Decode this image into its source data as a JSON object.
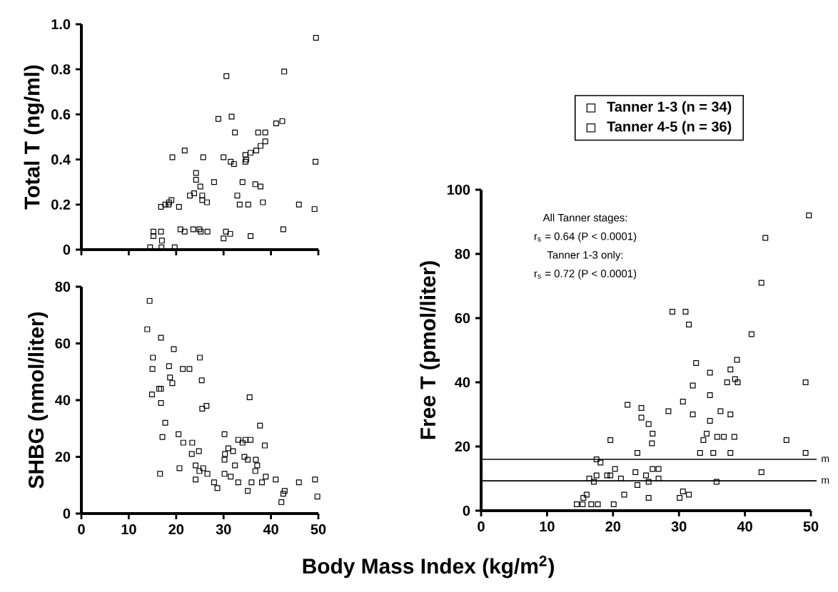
{
  "chart_data": [
    {
      "type": "scatter",
      "ylabel": "Total T (ng/ml)",
      "marker": "square",
      "tick_labels": "y",
      "xlim": [
        0,
        50
      ],
      "xticks": [
        0,
        10,
        20,
        30,
        40,
        50
      ],
      "ylim": [
        0,
        1.0
      ],
      "yticks": [
        0,
        0.2,
        0.4,
        0.6,
        0.8,
        {
          "value": 1.0,
          "label": "1.0"
        }
      ],
      "series": [
        {
          "color": "#000000",
          "x": [
            49.5,
            30.6,
            42.8,
            28.9,
            31.7,
            32.4,
            37.3,
            38.8,
            41.1,
            42.4,
            19.2,
            21.8,
            25.7,
            30.0,
            31.5,
            32.2,
            34.6,
            34.8,
            35.7,
            36.9,
            37.8,
            38.8,
            34.6,
            49.4,
            24.2,
            24.2,
            25.1,
            28.0,
            34.0,
            36.7,
            37.8,
            22.9,
            23.8,
            25.5,
            25.5,
            26.5,
            32.9,
            33.4,
            35.2,
            38.3,
            16.8,
            17.7,
            18.5,
            19.0,
            18.4,
            20.6,
            45.9,
            49.2,
            15.2,
            15.2,
            16.8,
            17.0,
            16.9,
            14.5,
            19.7,
            20.9,
            21.8,
            23.6,
            24.9,
            25.2,
            26.6,
            30.0,
            30.5,
            31.4,
            35.7,
            42.6
          ],
          "values": [
            0.94,
            0.77,
            0.79,
            0.58,
            0.59,
            0.52,
            0.52,
            0.52,
            0.56,
            0.57,
            0.41,
            0.44,
            0.41,
            0.41,
            0.39,
            0.38,
            0.42,
            0.4,
            0.43,
            0.44,
            0.46,
            0.48,
            0.39,
            0.39,
            0.34,
            0.31,
            0.28,
            0.3,
            0.3,
            0.29,
            0.28,
            0.24,
            0.25,
            0.24,
            0.22,
            0.21,
            0.24,
            0.2,
            0.2,
            0.21,
            0.19,
            0.2,
            0.21,
            0.22,
            0.2,
            0.19,
            0.2,
            0.18,
            0.08,
            0.06,
            0.08,
            0.04,
            0.01,
            0.01,
            0.01,
            0.09,
            0.08,
            0.09,
            0.09,
            0.08,
            0.08,
            0.05,
            0.08,
            0.07,
            0.06,
            0.09
          ]
        }
      ]
    },
    {
      "type": "scatter",
      "ylabel": "SHBG (nmol/liter)",
      "marker": "square",
      "xlim": [
        0,
        50
      ],
      "xticks": [
        0,
        10,
        20,
        30,
        40,
        50
      ],
      "ylim": [
        0,
        80
      ],
      "yticks": [
        0,
        20,
        40,
        60,
        80
      ],
      "series": [
        {
          "color": "#000000",
          "x": [
            14.4,
            13.9,
            16.8,
            15.1,
            15.0,
            19.5,
            25.0,
            18.5,
            18.7,
            19.2,
            21.4,
            22.8,
            16.4,
            16.8,
            14.9,
            16.8,
            25.4,
            25.5,
            26.4,
            35.5,
            17.7,
            17.1,
            16.6,
            20.5,
            21.5,
            23.4,
            23.3,
            24.8,
            20.7,
            24.1,
            24.9,
            25.7,
            24.1,
            26.6,
            28.0,
            28.7,
            30.2,
            30.3,
            30.2,
            31.0,
            32.0,
            32.4,
            30.2,
            31.5,
            33.1,
            33.1,
            34.0,
            34.6,
            35.7,
            37.7,
            34.4,
            35.1,
            36.8,
            37.1,
            36.7,
            35.1,
            35.9,
            38.1,
            38.7,
            38.9,
            41.0,
            42.2,
            42.6,
            42.9,
            45.9,
            49.3,
            49.8
          ],
          "values": [
            75,
            65,
            62,
            55,
            51,
            58,
            55,
            52,
            48,
            46,
            51,
            51,
            44,
            44,
            42,
            39,
            47,
            37,
            38,
            41,
            32,
            27,
            14,
            28,
            25,
            25,
            21,
            22,
            16,
            17,
            15,
            16,
            12,
            14,
            11,
            9,
            28,
            21,
            19,
            23,
            22,
            17,
            14,
            13,
            11,
            26,
            25,
            26,
            26,
            31,
            20,
            19,
            19,
            17,
            15,
            8,
            11,
            11,
            24,
            13,
            12,
            4,
            7,
            8,
            11,
            12,
            6
          ]
        }
      ]
    },
    {
      "type": "scatter",
      "ylabel": "Free T (pmol/liter)",
      "xlabel": "Body Mass Index (kg/m$^{2}$)",
      "marker": "square",
      "xlim": [
        0,
        50
      ],
      "xticks": [
        0,
        10,
        20,
        30,
        40,
        50
      ],
      "ylim": [
        0,
        100
      ],
      "yticks": [
        0,
        20,
        40,
        60,
        80,
        100
      ],
      "annotations": [
        "All Tanner stages:",
        "r$_{s}$ = 0.64 (P < 0.0001)",
        "Tanner 1-3 only:",
        "r$_{s}$ = 0.72 (P < 0.0001)",
        "Tanner 1-3 (n = 34)",
        "Tanner 4-5 (n = 36)"
      ],
      "ref_lines": [
        {
          "axis": "y",
          "value": 16.0,
          "label": "m"
        },
        {
          "axis": "y",
          "value": 9.3,
          "label": "m"
        }
      ],
      "series": [
        {
          "color": "#000000",
          "x": [
            49.7,
            43.1,
            42.5,
            41.0,
            29.0,
            31.0,
            31.5,
            32.6,
            34.7,
            38.8,
            37.8,
            37.3,
            38.5,
            38.9,
            49.2,
            32.1,
            34.7,
            22.2,
            24.3,
            24.3,
            28.4,
            30.6,
            32.1,
            36.3,
            37.8,
            34.7,
            25.4,
            26.0,
            25.9,
            23.7,
            19.6,
            34.2,
            33.7,
            35.8,
            36.8,
            38.4,
            33.2,
            35.2,
            37.8,
            46.3,
            49.2,
            17.5,
            18.1,
            16.4,
            17.5,
            17.1,
            19.1,
            19.6,
            20.3,
            21.2,
            23.4,
            25.0,
            26.0,
            26.9,
            26.9,
            23.7,
            25.4,
            21.7,
            25.4,
            30.1,
            30.6,
            31.5,
            35.7,
            42.5,
            16.0,
            15.5,
            14.5,
            15.4,
            16.7,
            17.7,
            20.1
          ],
          "values": [
            92,
            85,
            71,
            55,
            62,
            62,
            58,
            46,
            43,
            47,
            44,
            40,
            41,
            40,
            40,
            39,
            36,
            33,
            32,
            29,
            31,
            34,
            30,
            31,
            30,
            28,
            27,
            24,
            21,
            18,
            22,
            24,
            22,
            23,
            23,
            23,
            18,
            18,
            18,
            22,
            18,
            16,
            15,
            10,
            11,
            9,
            11,
            11,
            13,
            10,
            12,
            11,
            13,
            13,
            10,
            8,
            9,
            5,
            4,
            4,
            6,
            5,
            9,
            12,
            5,
            4,
            2,
            2,
            2,
            2,
            2
          ]
        }
      ]
    }
  ]
}
